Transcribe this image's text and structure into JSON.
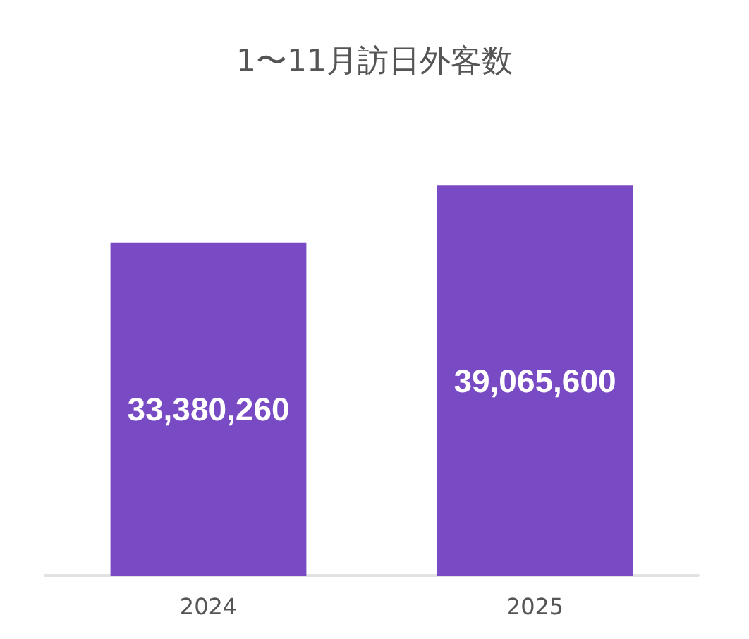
{
  "chart_data": {
    "type": "bar",
    "title": "1〜11月訪日外客数",
    "categories": [
      "2024",
      "2025"
    ],
    "values": [
      33380260,
      39065600
    ],
    "color": "#784bc4",
    "value_labels": [
      "33,380,260",
      "39,065,600"
    ],
    "tick_labels": "x",
    "grid": false
  }
}
